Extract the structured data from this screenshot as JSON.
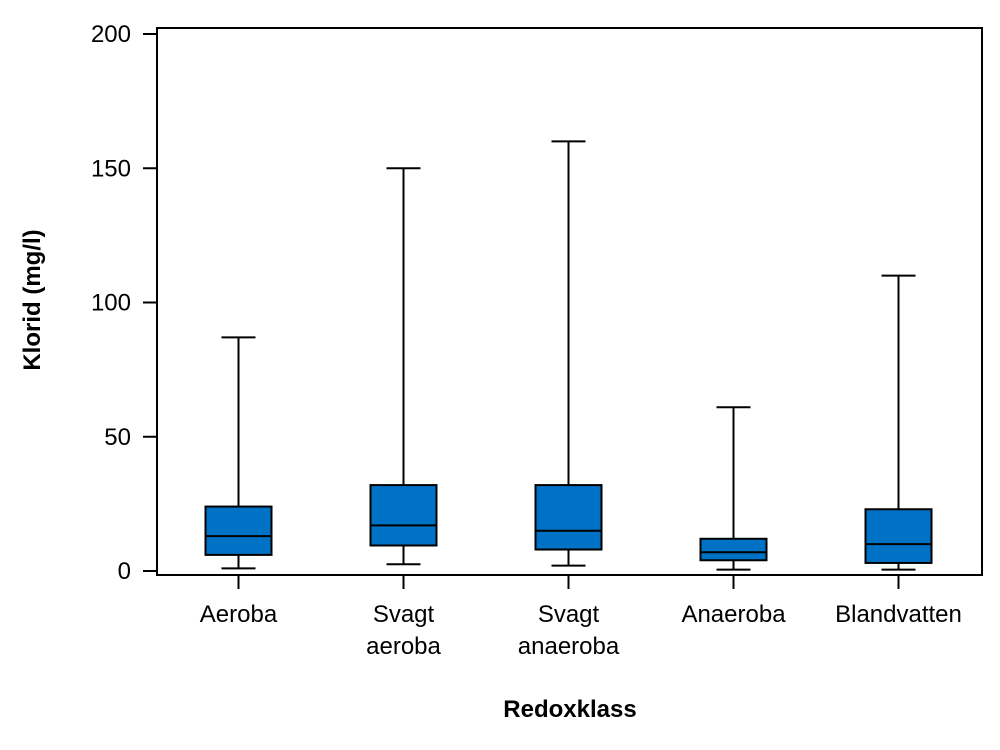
{
  "chart_data": {
    "type": "boxplot",
    "title": "",
    "xlabel": "Redoxklass",
    "ylabel": "Klorid (mg/l)",
    "ylim": [
      0,
      200
    ],
    "yticks": [
      0,
      50,
      100,
      150,
      200
    ],
    "grid": false,
    "box_color": "#0072C6",
    "categories": [
      {
        "label_lines": [
          "Aeroba"
        ],
        "min": 1,
        "q1": 6,
        "median": 13,
        "q3": 24,
        "max": 87
      },
      {
        "label_lines": [
          "Svagt",
          "aeroba"
        ],
        "min": 2.5,
        "q1": 9.5,
        "median": 17,
        "q3": 32,
        "max": 150
      },
      {
        "label_lines": [
          "Svagt",
          "anaeroba"
        ],
        "min": 2,
        "q1": 8,
        "median": 15,
        "q3": 32,
        "max": 160
      },
      {
        "label_lines": [
          "Anaeroba"
        ],
        "min": 0.5,
        "q1": 4,
        "median": 7,
        "q3": 12,
        "max": 61
      },
      {
        "label_lines": [
          "Blandvatten"
        ],
        "min": 0.5,
        "q1": 3,
        "median": 10,
        "q3": 23,
        "max": 110
      }
    ]
  }
}
